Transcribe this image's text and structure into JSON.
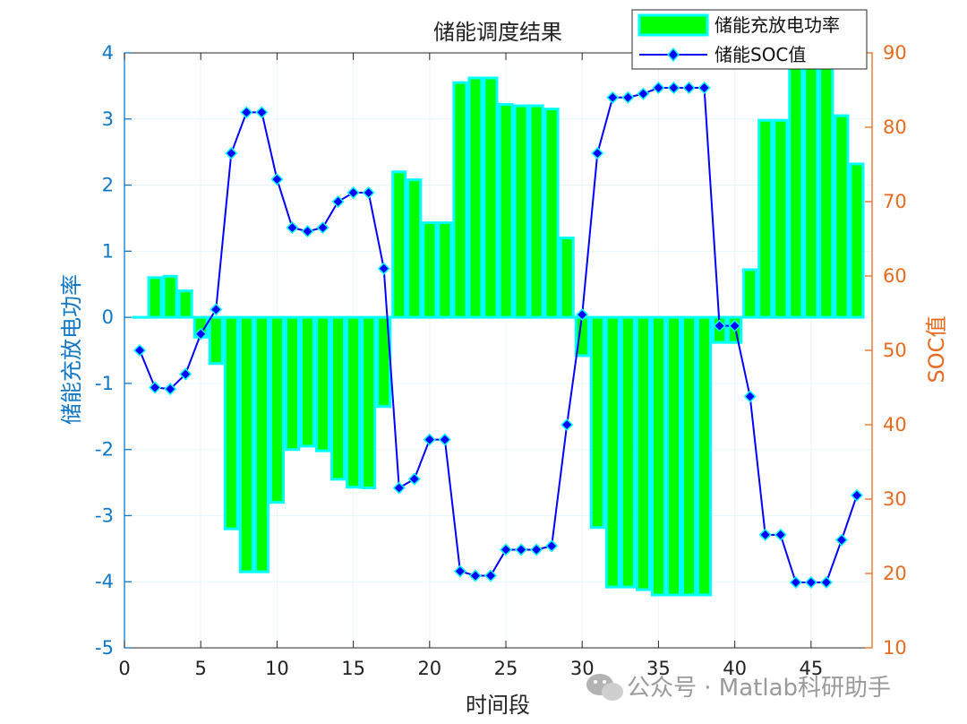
{
  "chart_data": {
    "type": "bar",
    "title": "储能调度结果",
    "xlabel": "时间段",
    "ylabel_left": "储能充放电功率",
    "ylabel_right": "SOC值",
    "xlim": [
      0,
      49
    ],
    "ylim_left": [
      -5,
      4
    ],
    "ylim_right": [
      10,
      90
    ],
    "xticks": [
      0,
      5,
      10,
      15,
      20,
      25,
      30,
      35,
      40,
      45
    ],
    "yticks_left": [
      -5,
      -4,
      -3,
      -2,
      -1,
      0,
      1,
      2,
      3,
      4
    ],
    "yticks_right": [
      10,
      20,
      30,
      40,
      50,
      60,
      70,
      80,
      90
    ],
    "grid": true,
    "legend_position": "top-right",
    "colors": {
      "bar_fill": "#00ff00",
      "bar_edge": "#00ffff",
      "soc_line": "#0000ff",
      "left_axis": "#0f77c5",
      "right_axis": "#e66b1f"
    },
    "x": [
      1,
      2,
      3,
      4,
      5,
      6,
      7,
      8,
      9,
      10,
      11,
      12,
      13,
      14,
      15,
      16,
      17,
      18,
      19,
      20,
      21,
      22,
      23,
      24,
      25,
      26,
      27,
      28,
      29,
      30,
      31,
      32,
      33,
      34,
      35,
      36,
      37,
      38,
      39,
      40,
      41,
      42,
      43,
      44,
      45,
      46,
      47,
      48
    ],
    "series": [
      {
        "name": "储能充放电功率",
        "type": "bar",
        "axis": "left",
        "values": [
          0,
          0.6,
          0.62,
          0.4,
          -0.3,
          -0.7,
          -3.2,
          -3.85,
          -3.85,
          -2.8,
          -2.0,
          -1.95,
          -2.02,
          -2.45,
          -2.57,
          -2.58,
          -1.35,
          2.2,
          2.08,
          1.43,
          1.43,
          3.55,
          3.62,
          3.62,
          3.22,
          3.2,
          3.2,
          3.15,
          1.2,
          -0.58,
          -3.18,
          -4.08,
          -4.08,
          -4.12,
          -4.2,
          -4.2,
          -4.2,
          -4.2,
          -0.38,
          -0.38,
          0.72,
          2.98,
          2.98,
          4.0,
          4.0,
          4.0,
          3.05,
          2.32
        ]
      },
      {
        "name": "储能SOC值",
        "type": "line",
        "axis": "right",
        "values": [
          50,
          45,
          44.8,
          46.8,
          52.2,
          55.5,
          76.5,
          82,
          82,
          73,
          66.5,
          66,
          66.5,
          70,
          71.2,
          71.2,
          61,
          31.5,
          32.7,
          38,
          38,
          20.3,
          19.7,
          19.7,
          23.2,
          23.2,
          23.2,
          23.7,
          40,
          54.8,
          76.5,
          84,
          84,
          84.5,
          85.3,
          85.3,
          85.3,
          85.3,
          53.3,
          53.3,
          43.8,
          25.2,
          25.2,
          18.8,
          18.8,
          18.8,
          24.5,
          30.5
        ]
      }
    ]
  },
  "watermark": "公众号 · Matlab科研助手"
}
